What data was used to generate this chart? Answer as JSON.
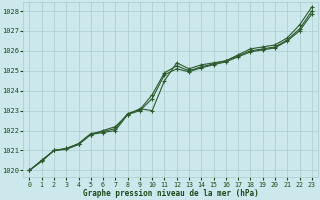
{
  "xlabel": "Graphe pression niveau de la mer (hPa)",
  "background_color": "#cce8ed",
  "grid_color": "#aacccc",
  "line_color": "#2d5a2d",
  "text_color": "#1a4a1a",
  "ylim": [
    1019.65,
    1028.45
  ],
  "xlim": [
    -0.5,
    23.5
  ],
  "yticks": [
    1020,
    1021,
    1022,
    1023,
    1024,
    1025,
    1026,
    1027,
    1028
  ],
  "xticks": [
    0,
    1,
    2,
    3,
    4,
    5,
    6,
    7,
    8,
    9,
    10,
    11,
    12,
    13,
    14,
    15,
    16,
    17,
    18,
    19,
    20,
    21,
    22,
    23
  ],
  "hours": [
    0,
    1,
    2,
    3,
    4,
    5,
    6,
    7,
    8,
    9,
    10,
    11,
    12,
    13,
    14,
    15,
    16,
    17,
    18,
    19,
    20,
    21,
    22,
    23
  ],
  "line_upper": [
    1020.0,
    1020.5,
    1021.0,
    1021.1,
    1021.3,
    1021.8,
    1022.0,
    1022.2,
    1022.8,
    1023.1,
    1023.0,
    1024.5,
    1025.4,
    1025.1,
    1025.3,
    1025.4,
    1025.5,
    1025.8,
    1026.1,
    1026.2,
    1026.3,
    1026.65,
    1027.3,
    1028.2
  ],
  "line_mid": [
    1020.0,
    1020.5,
    1021.0,
    1021.1,
    1021.35,
    1021.85,
    1021.95,
    1022.1,
    1022.85,
    1023.05,
    1023.8,
    1024.9,
    1025.25,
    1025.0,
    1025.2,
    1025.35,
    1025.5,
    1025.75,
    1026.0,
    1026.1,
    1026.2,
    1026.55,
    1027.1,
    1028.0
  ],
  "line_lower": [
    1020.0,
    1020.45,
    1021.0,
    1021.05,
    1021.3,
    1021.8,
    1021.9,
    1022.0,
    1022.8,
    1023.0,
    1023.6,
    1024.8,
    1025.1,
    1024.95,
    1025.15,
    1025.3,
    1025.45,
    1025.7,
    1025.95,
    1026.05,
    1026.15,
    1026.5,
    1027.0,
    1027.85
  ]
}
